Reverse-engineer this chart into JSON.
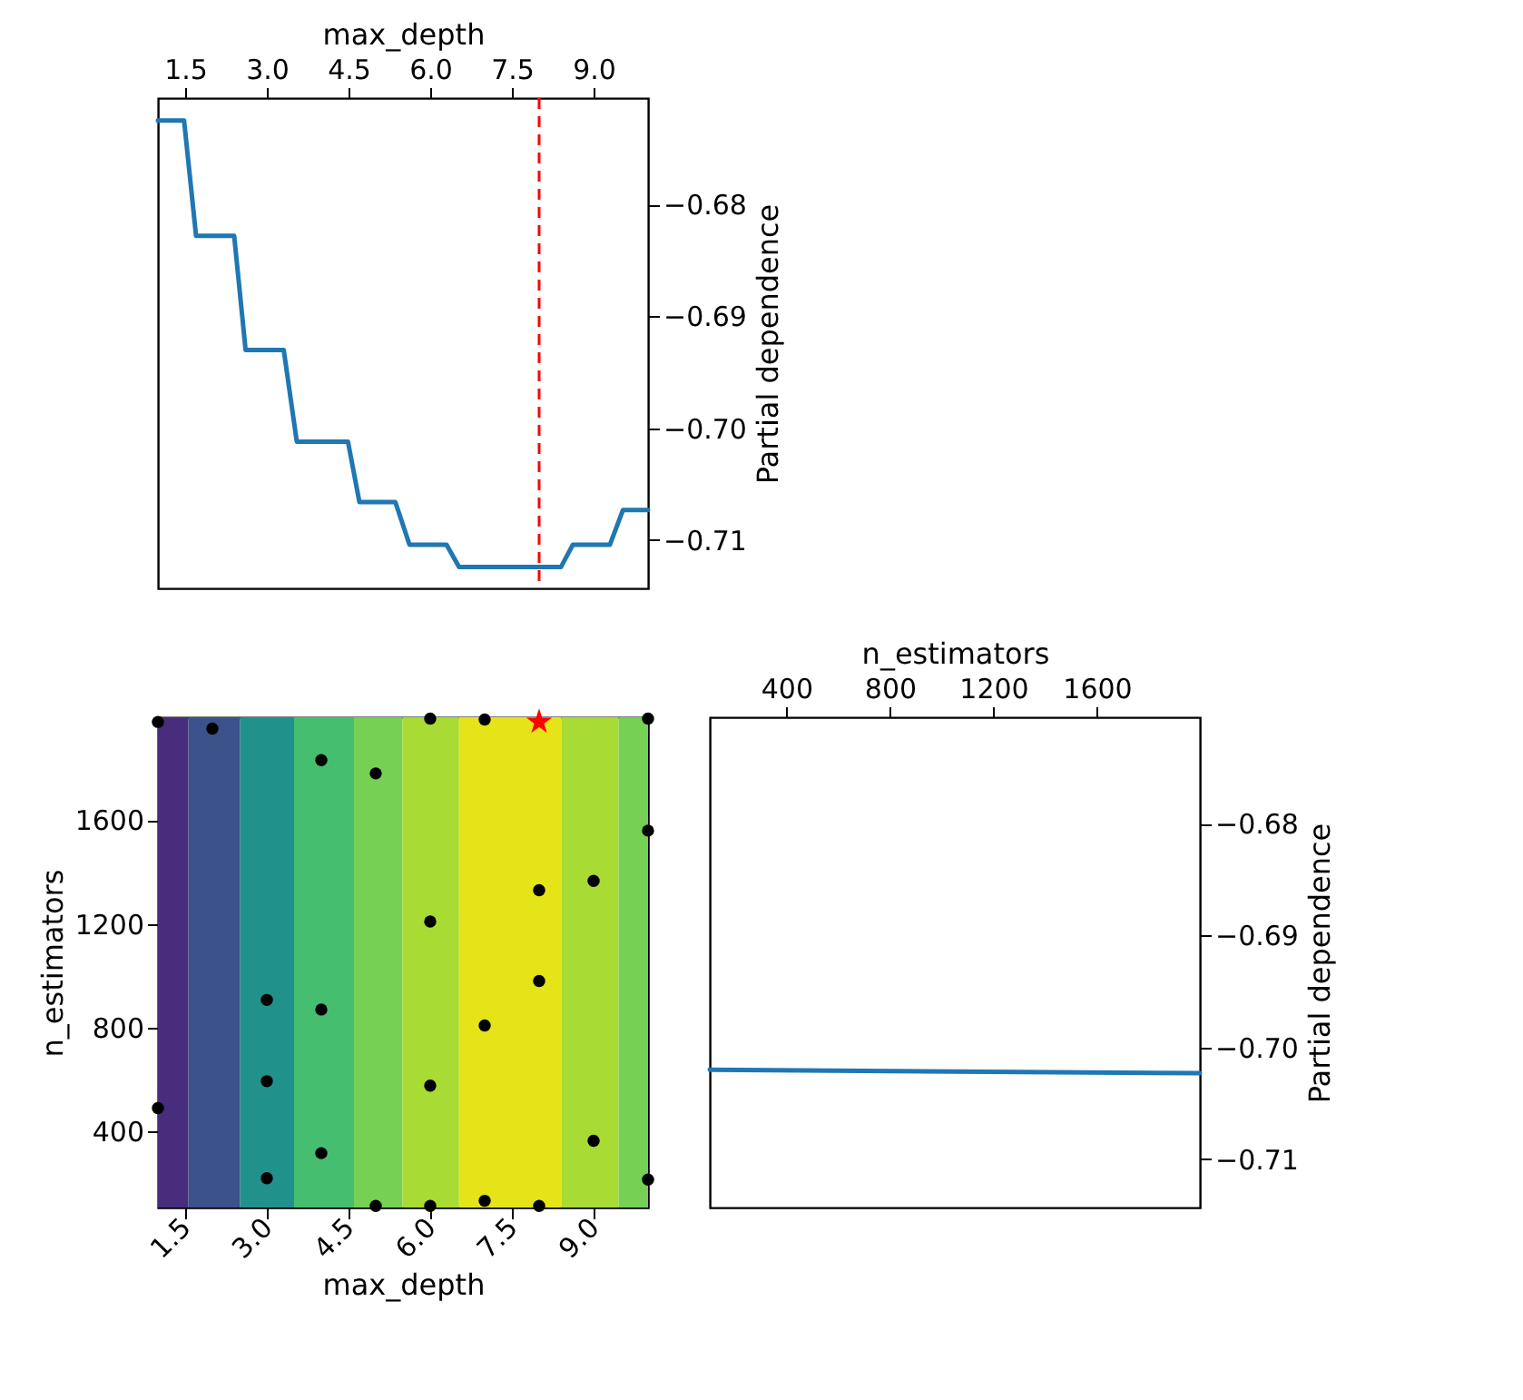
{
  "chart_data": [
    {
      "type": "line",
      "xlabel": "max_depth",
      "ylabel": "Partial dependence",
      "xlim": [
        1,
        10
      ],
      "xticks": [
        1.5,
        {
          "value": 3,
          "label": "3.0"
        },
        4.5,
        {
          "value": 6,
          "label": "6.0"
        },
        7.5,
        {
          "value": 9,
          "label": "9.0"
        }
      ],
      "ylim": [
        -0.7143,
        -0.6705
      ],
      "yticks": [
        {
          "value": -0.71,
          "label": "−0.71"
        },
        {
          "value": -0.7,
          "label": "−0.70"
        },
        {
          "value": -0.69,
          "label": "−0.69"
        },
        {
          "value": -0.68,
          "label": "−0.68"
        }
      ],
      "series": [
        {
          "color": "#1f77b4",
          "x": [
            1,
            1.48,
            1.7,
            2.4,
            2.61,
            3.31,
            3.55,
            4.49,
            4.7,
            5.36,
            5.62,
            6.3,
            6.53,
            8.4,
            8.62,
            9.3,
            9.54,
            10
          ],
          "values": [
            -0.6725,
            -0.6725,
            -0.6828,
            -0.6828,
            -0.693,
            -0.693,
            -0.7012,
            -0.7012,
            -0.7066,
            -0.7066,
            -0.7104,
            -0.7104,
            -0.7124,
            -0.7124,
            -0.7104,
            -0.7104,
            -0.7073,
            -0.7073
          ]
        }
      ],
      "ref_lines": [
        {
          "axis": "x",
          "value": 8,
          "color": "#ff0000",
          "line_style": "dashed"
        }
      ]
    },
    {
      "type": "scatter",
      "xlabel": "max_depth",
      "ylabel": "n_estimators",
      "xlim": [
        1,
        10
      ],
      "xticks": [
        1.5,
        {
          "value": 3,
          "label": "3.0"
        },
        4.5,
        {
          "value": 6,
          "label": "6.0"
        },
        7.5,
        {
          "value": 9,
          "label": "9.0"
        }
      ],
      "ylim": [
        104,
        1998
      ],
      "yticks": [
        400,
        800,
        1200,
        1600
      ],
      "bands": [
        {
          "axis": "x",
          "from": 1,
          "to": 1.56,
          "color": "#472d7b"
        },
        {
          "axis": "x",
          "from": 1.56,
          "to": 2.51,
          "color": "#3b528b"
        },
        {
          "axis": "x",
          "from": 2.51,
          "to": 3.5,
          "color": "#21918c"
        },
        {
          "axis": "x",
          "from": 3.5,
          "to": 4.6,
          "color": "#45bf6f"
        },
        {
          "axis": "x",
          "from": 4.6,
          "to": 5.49,
          "color": "#76d054"
        },
        {
          "axis": "x",
          "from": 5.49,
          "to": 6.53,
          "color": "#a8db34"
        },
        {
          "axis": "x",
          "from": 6.53,
          "to": 8.41,
          "color": "#e5e419"
        },
        {
          "axis": "x",
          "from": 8.41,
          "to": 9.46,
          "color": "#a8db34"
        },
        {
          "axis": "x",
          "from": 9.46,
          "to": 10,
          "color": "#76d054"
        }
      ],
      "series": [
        {
          "marker": "circle",
          "color": "#000000",
          "x": [
            1,
            2,
            4,
            5,
            6,
            7,
            10,
            10,
            9,
            8,
            6,
            8,
            3,
            4,
            7,
            3,
            6,
            1,
            4,
            9,
            3,
            10,
            7,
            5,
            6,
            8
          ],
          "values": [
            1980,
            1954,
            1832,
            1781,
            1993,
            1989,
            1993,
            1560,
            1366,
            1330,
            1209,
            979,
            906,
            869,
            807,
            592,
            575,
            488,
            314,
            362,
            217,
            212,
            130,
            110,
            110,
            110
          ]
        },
        {
          "marker": "star",
          "color": "#ff0000",
          "x": [
            8
          ],
          "values": [
            1980
          ]
        }
      ]
    },
    {
      "type": "line",
      "xlabel": "n_estimators",
      "ylabel": "Partial dependence",
      "xlim": [
        104,
        1998
      ],
      "xticks": [
        400,
        800,
        1200,
        1600
      ],
      "ylim": [
        -0.7143,
        -0.6705
      ],
      "yticks": [
        {
          "value": -0.71,
          "label": "−0.71"
        },
        {
          "value": -0.7,
          "label": "−0.70"
        },
        {
          "value": -0.69,
          "label": "−0.69"
        },
        {
          "value": -0.68,
          "label": "−0.68"
        }
      ],
      "series": [
        {
          "color": "#1f77b4",
          "x": [
            104,
            1998
          ],
          "values": [
            -0.702,
            -0.7023
          ]
        }
      ]
    }
  ]
}
